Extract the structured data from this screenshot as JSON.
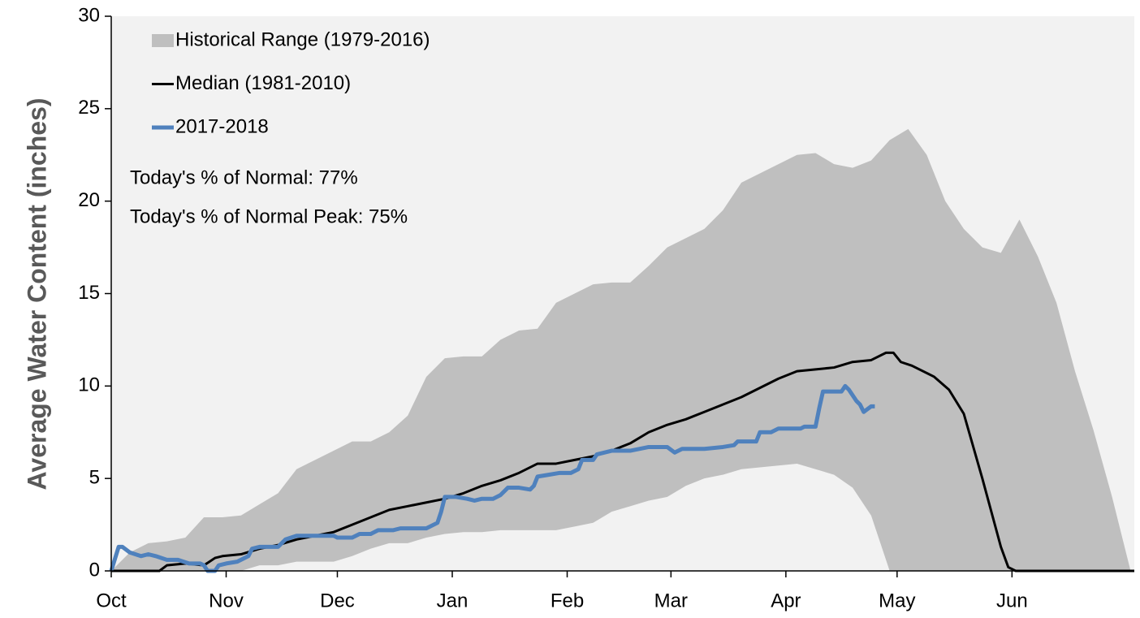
{
  "chart_data": {
    "type": "line",
    "y_label": "Average Water Content (inches)",
    "background": "#f2f2f2",
    "xlim": [
      0,
      276
    ],
    "xticks": [
      {
        "value": 0,
        "label": "Oct"
      },
      {
        "value": 31,
        "label": "Nov"
      },
      {
        "value": 61,
        "label": "Dec"
      },
      {
        "value": 92,
        "label": "Jan"
      },
      {
        "value": 123,
        "label": "Feb"
      },
      {
        "value": 151,
        "label": "Mar"
      },
      {
        "value": 182,
        "label": "Apr"
      },
      {
        "value": 212,
        "label": "May"
      },
      {
        "value": 243,
        "label": "Jun"
      }
    ],
    "ylim": [
      0,
      30
    ],
    "yticks": [
      0,
      5,
      10,
      15,
      20,
      25,
      30
    ],
    "series": [
      {
        "name": "Historical Range (1979-2016)",
        "type": "band",
        "color": "#bfbfbf",
        "x": [
          0,
          5,
          10,
          15,
          20,
          25,
          30,
          35,
          40,
          45,
          50,
          55,
          60,
          65,
          70,
          75,
          80,
          85,
          90,
          95,
          100,
          105,
          110,
          115,
          120,
          125,
          130,
          135,
          140,
          145,
          150,
          155,
          160,
          165,
          170,
          175,
          180,
          185,
          190,
          195,
          200,
          205,
          210,
          215,
          220,
          225,
          230,
          235,
          240,
          245,
          250,
          255,
          260,
          265,
          270,
          275
        ],
        "upper": [
          0,
          1.0,
          1.5,
          1.6,
          1.8,
          2.9,
          2.9,
          3.0,
          3.6,
          4.2,
          5.5,
          6.0,
          6.5,
          7.0,
          7.0,
          7.5,
          8.4,
          10.5,
          11.5,
          11.6,
          11.6,
          12.5,
          13.0,
          13.1,
          14.5,
          15.0,
          15.5,
          15.6,
          15.6,
          16.5,
          17.5,
          18.0,
          18.5,
          19.5,
          21.0,
          21.5,
          22.0,
          22.5,
          22.6,
          22.0,
          21.8,
          22.2,
          23.3,
          23.9,
          22.5,
          20.0,
          18.5,
          17.5,
          17.2,
          19.0,
          17.0,
          14.5,
          10.8,
          7.6,
          4.0,
          0
        ],
        "lower": [
          0,
          0,
          0,
          0,
          0,
          0,
          0,
          0,
          0.3,
          0.3,
          0.5,
          0.5,
          0.5,
          0.8,
          1.2,
          1.5,
          1.5,
          1.8,
          2.0,
          2.1,
          2.1,
          2.2,
          2.2,
          2.2,
          2.2,
          2.4,
          2.6,
          3.2,
          3.5,
          3.8,
          4.0,
          4.6,
          5.0,
          5.2,
          5.5,
          5.6,
          5.7,
          5.8,
          5.5,
          5.2,
          4.5,
          3.0,
          0,
          0,
          0,
          0,
          0,
          0,
          0,
          0,
          0,
          0,
          0,
          0,
          0,
          0
        ]
      },
      {
        "name": "Median (1981-2010)",
        "color": "#000000",
        "x": [
          0,
          13,
          15,
          20,
          25,
          28,
          30,
          35,
          40,
          45,
          50,
          55,
          60,
          65,
          70,
          75,
          80,
          85,
          90,
          95,
          100,
          105,
          110,
          115,
          120,
          125,
          130,
          135,
          140,
          145,
          150,
          155,
          160,
          165,
          170,
          175,
          180,
          185,
          190,
          195,
          200,
          205,
          209,
          211,
          213,
          216,
          222,
          226,
          230,
          235,
          240,
          242,
          244,
          276
        ],
        "values": [
          0,
          0,
          0.3,
          0.4,
          0.3,
          0.7,
          0.8,
          0.9,
          1.2,
          1.4,
          1.7,
          1.9,
          2.1,
          2.5,
          2.9,
          3.3,
          3.5,
          3.7,
          3.9,
          4.2,
          4.6,
          4.9,
          5.3,
          5.8,
          5.8,
          6.0,
          6.2,
          6.5,
          6.9,
          7.5,
          7.9,
          8.2,
          8.6,
          9.0,
          9.4,
          9.9,
          10.4,
          10.8,
          10.9,
          11.0,
          11.3,
          11.4,
          11.8,
          11.8,
          11.3,
          11.1,
          10.5,
          9.8,
          8.5,
          5.0,
          1.3,
          0.2,
          0,
          0
        ]
      },
      {
        "name": "2017-2018",
        "color": "#4f81bd",
        "x": [
          0,
          2,
          3,
          5,
          8,
          10,
          12,
          15,
          18,
          21,
          24,
          25,
          26,
          28,
          29,
          31,
          34,
          37,
          38,
          40,
          45,
          47,
          50,
          55,
          60,
          61,
          65,
          67,
          70,
          72,
          76,
          78,
          85,
          88,
          89,
          90,
          93,
          96,
          98,
          100,
          103,
          105,
          107,
          110,
          113,
          114,
          115,
          118,
          121,
          124,
          126,
          127,
          130,
          131,
          135,
          140,
          145,
          150,
          152,
          154,
          160,
          165,
          168,
          169,
          174,
          175,
          178,
          180,
          186,
          187,
          190,
          191,
          192,
          197,
          198,
          199,
          201,
          202,
          203,
          205,
          206
        ],
        "values": [
          0,
          1.3,
          1.3,
          1.0,
          0.8,
          0.9,
          0.8,
          0.6,
          0.6,
          0.4,
          0.4,
          0.3,
          0,
          0,
          0.3,
          0.4,
          0.5,
          0.8,
          1.2,
          1.3,
          1.3,
          1.7,
          1.9,
          1.9,
          1.9,
          1.8,
          1.8,
          2.0,
          2.0,
          2.2,
          2.2,
          2.3,
          2.3,
          2.6,
          3.2,
          4.0,
          4.0,
          3.9,
          3.8,
          3.9,
          3.9,
          4.1,
          4.5,
          4.5,
          4.4,
          4.6,
          5.1,
          5.2,
          5.3,
          5.3,
          5.5,
          6.0,
          6.0,
          6.3,
          6.5,
          6.5,
          6.7,
          6.7,
          6.4,
          6.6,
          6.6,
          6.7,
          6.8,
          7.0,
          7.0,
          7.5,
          7.5,
          7.7,
          7.7,
          7.8,
          7.8,
          8.8,
          9.7,
          9.7,
          10.0,
          9.8,
          9.2,
          9.0,
          8.6,
          8.9,
          8.9
        ]
      }
    ],
    "annotations": [
      "Today's % of Normal: 77%",
      "Today's % of Normal Peak: 75%"
    ]
  }
}
